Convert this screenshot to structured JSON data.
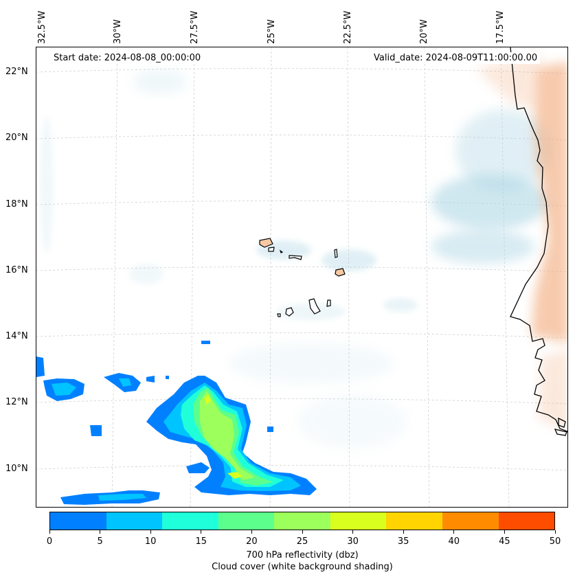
{
  "map": {
    "start_date": "Start date: 2024-08-08_00:00:00",
    "valid_date": "Valid_date: 2024-08-09T11:00:00.00",
    "longitude_labels": [
      "32.5°W",
      "30°W",
      "27.5°W",
      "25°W",
      "22.5°W",
      "20°W",
      "17.5°W"
    ],
    "latitude_labels": [
      "22°N",
      "20°N",
      "18°N",
      "16°N",
      "14°N",
      "12°N",
      "10°N"
    ],
    "gridlines": true
  },
  "colorbar": {
    "ticks": [
      "0",
      "5",
      "10",
      "15",
      "20",
      "25",
      "30",
      "35",
      "40",
      "45",
      "50"
    ],
    "colors": [
      "#0080ff",
      "#00c4ff",
      "#1fffd9",
      "#5cff8c",
      "#9cff5c",
      "#d9ff1f",
      "#ffd400",
      "#ff8c00",
      "#ff4d00"
    ],
    "label_line1": "700 hPa reflectivity (dbz)",
    "label_line2": "Cloud cover (white background shading)"
  },
  "colors": {
    "cloud": "#a9d4e3",
    "land_heat": "#f2a878",
    "island_fill": "#f6c9a4",
    "coastline": "#000000"
  }
}
